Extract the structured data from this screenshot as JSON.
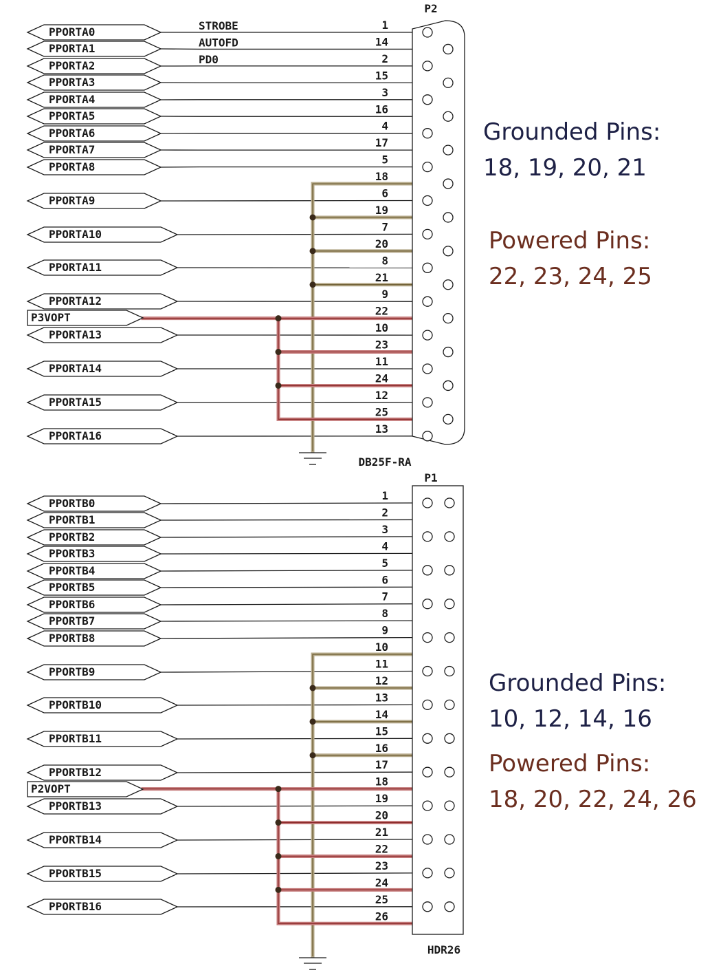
{
  "colors": {
    "ground_wire": "#b5a98a",
    "ground_wire_core": "#6b5a2e",
    "power_wire": "#c47a7a",
    "power_wire_core": "#8a2a2a",
    "ground_note": "#1e2146",
    "power_note": "#6b2e1f"
  },
  "connector_p2": {
    "ref": "P2",
    "part": "DB25F-RA",
    "signals": [
      "PPORTA0",
      "PPORTA1",
      "PPORTA2",
      "PPORTA3",
      "PPORTA4",
      "PPORTA5",
      "PPORTA6",
      "PPORTA7",
      "PPORTA8",
      "PPORTA9",
      "PPORTA10",
      "PPORTA11",
      "PPORTA12",
      "PPORTA13",
      "PPORTA14",
      "PPORTA15",
      "PPORTA16"
    ],
    "net_labels": [
      "STROBE",
      "AUTOFD",
      "PD0"
    ],
    "power_label": "P3VOPT",
    "pins": [
      "1",
      "14",
      "2",
      "15",
      "3",
      "16",
      "4",
      "17",
      "5",
      "18",
      "6",
      "19",
      "7",
      "20",
      "8",
      "21",
      "9",
      "22",
      "10",
      "23",
      "11",
      "24",
      "12",
      "25",
      "13"
    ],
    "ground_pins": [
      "18",
      "19",
      "20",
      "21"
    ],
    "powered_pins": [
      "22",
      "23",
      "24",
      "25"
    ]
  },
  "connector_p1": {
    "ref": "P1",
    "part": "HDR26",
    "signals": [
      "PPORTB0",
      "PPORTB1",
      "PPORTB2",
      "PPORTB3",
      "PPORTB4",
      "PPORTB5",
      "PPORTB6",
      "PPORTB7",
      "PPORTB8",
      "PPORTB9",
      "PPORTB10",
      "PPORTB11",
      "PPORTB12",
      "PPORTB13",
      "PPORTB14",
      "PPORTB15",
      "PPORTB16"
    ],
    "power_label": "P2VOPT",
    "pins": [
      "1",
      "2",
      "3",
      "4",
      "5",
      "6",
      "7",
      "8",
      "9",
      "10",
      "11",
      "12",
      "13",
      "14",
      "15",
      "16",
      "17",
      "18",
      "19",
      "20",
      "21",
      "22",
      "23",
      "24",
      "25",
      "26"
    ],
    "ground_pins": [
      "10",
      "12",
      "14",
      "16"
    ],
    "powered_pins": [
      "18",
      "20",
      "22",
      "24",
      "26"
    ]
  },
  "notes": {
    "top_grounded_title": "Grounded Pins:",
    "top_grounded_values": "18, 19, 20, 21",
    "top_powered_title": "Powered Pins:",
    "top_powered_values": "22, 23, 24, 25",
    "bottom_grounded_title": "Grounded Pins:",
    "bottom_grounded_values": "10, 12, 14, 16",
    "bottom_powered_title": "Powered Pins:",
    "bottom_powered_values": "18, 20, 22, 24, 26"
  }
}
